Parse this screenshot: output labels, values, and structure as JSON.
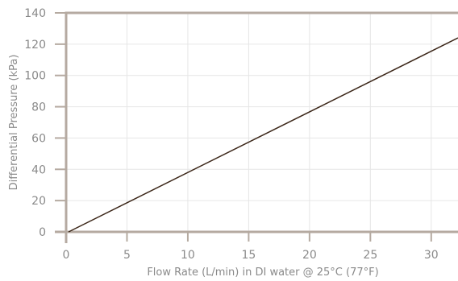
{
  "chart_data": {
    "type": "line",
    "title": "",
    "xlabel": "Flow Rate (L/min) in DI water @ 25°C (77°F)",
    "ylabel": "Differential Pressure (kPa)",
    "xlim": [
      0,
      32.2
    ],
    "ylim": [
      0,
      140
    ],
    "x_ticks": [
      "0",
      "5",
      "10",
      "15",
      "20",
      "25",
      "30"
    ],
    "y_ticks": [
      "0",
      "20",
      "40",
      "60",
      "80",
      "100",
      "120",
      "140"
    ],
    "grid": true,
    "series": [
      {
        "x": [
          0.2,
          32.2
        ],
        "y": [
          0,
          124
        ],
        "color": "#3b2618"
      }
    ],
    "colors": {
      "axis": "#b5aaa1",
      "grid": "#e6e6e6",
      "text": "#8a8a8a"
    }
  }
}
